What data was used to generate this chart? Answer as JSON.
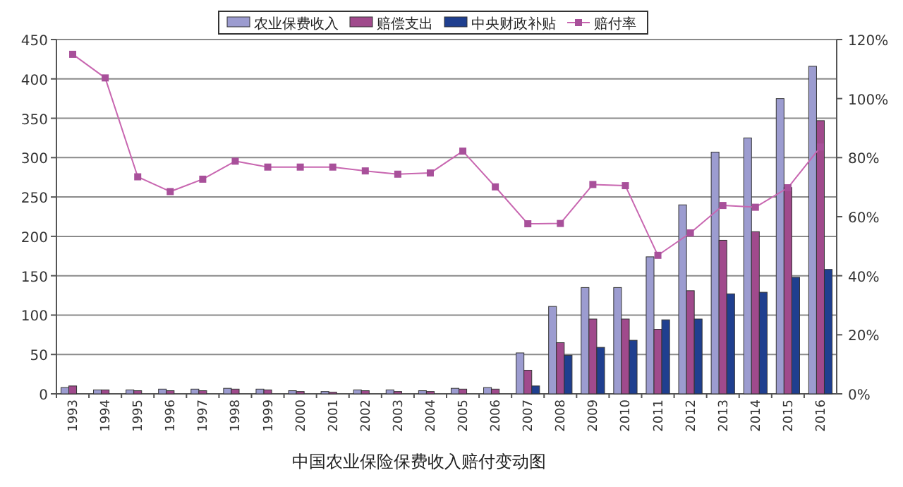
{
  "chart_data": {
    "type": "bar",
    "annotations": [
      "中国农业保险保费收入赔付变动图"
    ],
    "categories": [
      "1993",
      "1994",
      "1995",
      "1996",
      "1997",
      "1998",
      "1999",
      "2000",
      "2001",
      "2002",
      "2003",
      "2004",
      "2005",
      "2006",
      "2007",
      "2008",
      "2009",
      "2010",
      "2011",
      "2012",
      "2013",
      "2014",
      "2015",
      "2016"
    ],
    "series": [
      {
        "name": "农业保费收入",
        "color": "#9c9cd0",
        "values": [
          8,
          5,
          5,
          6,
          6,
          7,
          6,
          4,
          3,
          5,
          5,
          4,
          7,
          8,
          52,
          111,
          135,
          135,
          174,
          240,
          307,
          325,
          375,
          416
        ]
      },
      {
        "name": "赔偿支出",
        "color": "#a04a8c",
        "values": [
          10,
          5,
          4,
          4,
          4,
          6,
          5,
          3,
          2,
          4,
          3,
          3,
          6,
          6,
          30,
          65,
          95,
          95,
          82,
          131,
          195,
          206,
          262,
          347
        ]
      },
      {
        "name": "中央财政补贴",
        "color": "#1f3f8f",
        "values": [
          null,
          null,
          null,
          null,
          null,
          null,
          null,
          null,
          null,
          null,
          null,
          null,
          null,
          null,
          10,
          49,
          59,
          68,
          94,
          95,
          127,
          129,
          148,
          158
        ]
      },
      {
        "name": "赔付率",
        "type": "line",
        "axis": "y2",
        "color": "#c866b0",
        "values": [
          115,
          107,
          73.5,
          68.5,
          72.7,
          78.8,
          76.8,
          76.8,
          76.8,
          75.5,
          74.4,
          74.8,
          82.2,
          70.1,
          57.6,
          57.7,
          70.9,
          70.5,
          46.9,
          54.5,
          63.8,
          63.2,
          69.8,
          83.6
        ]
      }
    ],
    "ylim": [
      0,
      450
    ],
    "yticks": [
      0,
      50,
      100,
      150,
      200,
      250,
      300,
      350,
      400,
      450
    ],
    "y2lim": [
      0,
      120
    ],
    "y2ticks": [
      {
        "value": 0,
        "label": "0%"
      },
      {
        "value": 20,
        "label": "20%"
      },
      {
        "value": 40,
        "label": "40%"
      },
      {
        "value": 60,
        "label": "60%"
      },
      {
        "value": 80,
        "label": "80%"
      },
      {
        "value": 100,
        "label": "100%"
      },
      {
        "value": 120,
        "label": "120%"
      }
    ],
    "grid": "y",
    "legend": "top",
    "marker": "square",
    "line_style": "solid"
  }
}
